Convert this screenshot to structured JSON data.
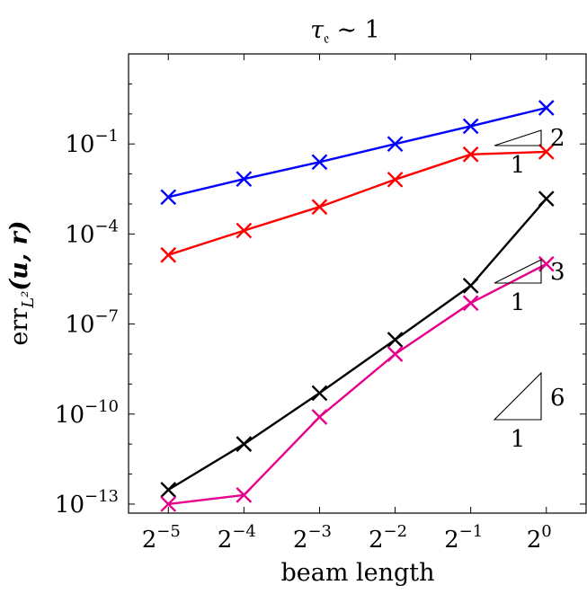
{
  "chart_data": {
    "type": "line",
    "title": "τ_𝔢 ∼ 1",
    "xlabel": "beam length",
    "ylabel": "err_{L²}(u, r)",
    "x_scale": "log2",
    "y_scale": "log10",
    "x": [
      0.03125,
      0.0625,
      0.125,
      0.25,
      0.5,
      1
    ],
    "x_tick_labels": [
      {
        "base": "2",
        "exp": "−5"
      },
      {
        "base": "2",
        "exp": "−4"
      },
      {
        "base": "2",
        "exp": "−3"
      },
      {
        "base": "2",
        "exp": "−2"
      },
      {
        "base": "2",
        "exp": "−1"
      },
      {
        "base": "2",
        "exp": "0"
      }
    ],
    "y_ticks": [
      0.1,
      0.0001,
      1e-07,
      1e-10,
      1e-13
    ],
    "y_tick_labels": [
      {
        "base": "10",
        "exp": "−1"
      },
      {
        "base": "10",
        "exp": "−4"
      },
      {
        "base": "10",
        "exp": "−7"
      },
      {
        "base": "10",
        "exp": "−10"
      },
      {
        "base": "10",
        "exp": "−13"
      }
    ],
    "xlim": [
      0.0217,
      1.44
    ],
    "ylim": [
      5e-14,
      100
    ],
    "grid": false,
    "series": [
      {
        "color": "#0000ff",
        "values": [
          0.0017,
          0.0068,
          0.025,
          0.1,
          0.39,
          1.6
        ]
      },
      {
        "color": "#ff0000",
        "values": [
          2e-05,
          0.00013,
          0.0008,
          0.0065,
          0.045,
          0.055
        ]
      },
      {
        "color": "#000000",
        "values": [
          3e-13,
          1e-11,
          5e-10,
          3e-08,
          1.9e-06,
          0.0015
        ]
      },
      {
        "color": "#e6008c",
        "values": [
          1e-13,
          2e-13,
          8e-11,
          1e-08,
          5e-07,
          1e-05
        ]
      }
    ],
    "slope_triangles": [
      {
        "slope": "2",
        "run": "1"
      },
      {
        "slope": "3",
        "run": "1"
      },
      {
        "slope": "6",
        "run": "1"
      }
    ]
  }
}
